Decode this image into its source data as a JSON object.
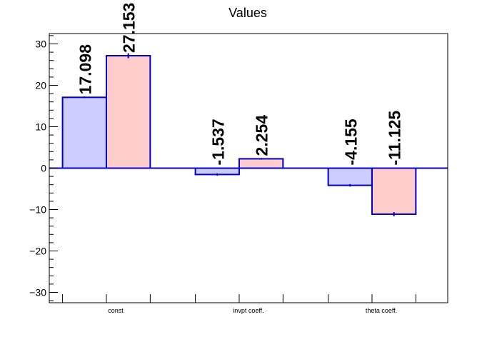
{
  "chart_data": {
    "type": "bar",
    "title": "Values",
    "categories": [
      "const",
      "invpt coeff.",
      "theta coeff."
    ],
    "series": [
      {
        "values": [
          17.098,
          -1.537,
          -4.155
        ],
        "errors": [
          0.2,
          0.3,
          0.3
        ],
        "labels": [
          "17.098",
          "-1.537",
          "-4.155"
        ],
        "fill": "#ccccff"
      },
      {
        "values": [
          27.153,
          2.254,
          -11.125
        ],
        "errors": [
          0.6,
          0.2,
          0.5
        ],
        "labels": [
          "27.153",
          "2.254",
          "-11.125"
        ],
        "fill": "#ffcccc"
      }
    ],
    "ylim": [
      -32.5,
      32.5
    ],
    "yticks": [
      -30,
      -20,
      -10,
      0,
      10,
      20,
      30
    ],
    "ytick_labels": [
      "−30",
      "−20",
      "−10",
      "0",
      "10",
      "20",
      "30"
    ],
    "xlabel": "",
    "ylabel": "",
    "grid": false,
    "line_color": "#0000cc"
  }
}
